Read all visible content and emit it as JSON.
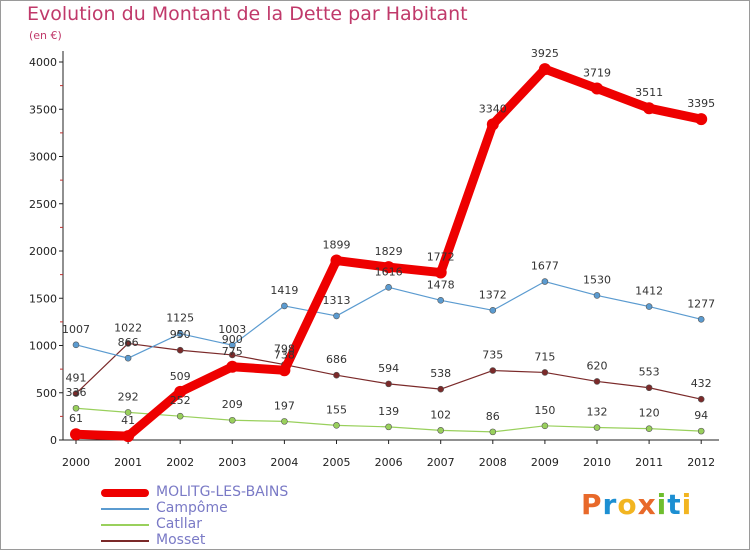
{
  "title": "Evolution du Montant de la Dette par Habitant",
  "subtitle": "(en €)",
  "logo": {
    "text": "Proxiti",
    "colors": [
      "#e8692a",
      "#1d8fd2",
      "#f2b521",
      "#e8692a",
      "#6fbe2e",
      "#1d8fd2",
      "#f2b521"
    ]
  },
  "chart_data": {
    "type": "line",
    "x": [
      "2000",
      "2001",
      "2002",
      "2003",
      "2004",
      "2005",
      "2006",
      "2007",
      "2008",
      "2009",
      "2010",
      "2011",
      "2012"
    ],
    "ylim": [
      0,
      4000
    ],
    "yticks": [
      0,
      500,
      1000,
      1500,
      2000,
      2500,
      3000,
      3500,
      4000
    ],
    "grid": false,
    "legend_position": "bottom-left",
    "series": [
      {
        "name": "Mosset",
        "color": "#7b2a2a",
        "values": [
          491,
          1022,
          950,
          900,
          798,
          686,
          594,
          538,
          735,
          715,
          620,
          553,
          432
        ]
      },
      {
        "name": "Catllar",
        "color": "#99d05c",
        "values": [
          336,
          292,
          252,
          209,
          197,
          155,
          139,
          102,
          86,
          150,
          132,
          120,
          94
        ]
      },
      {
        "name": "Campôme",
        "color": "#5b9bd0",
        "values": [
          1007,
          866,
          1125,
          1003,
          1419,
          1313,
          1616,
          1478,
          1372,
          1677,
          1530,
          1412,
          1277
        ]
      },
      {
        "name": "MOLITG-LES-BAINS",
        "color": "#ee0000",
        "values": [
          61,
          41,
          509,
          775,
          738,
          1899,
          1829,
          1772,
          3340,
          3925,
          3719,
          3511,
          3395
        ]
      }
    ],
    "legend_order": [
      "MOLITG-LES-BAINS",
      "Campôme",
      "Catllar",
      "Mosset"
    ]
  }
}
